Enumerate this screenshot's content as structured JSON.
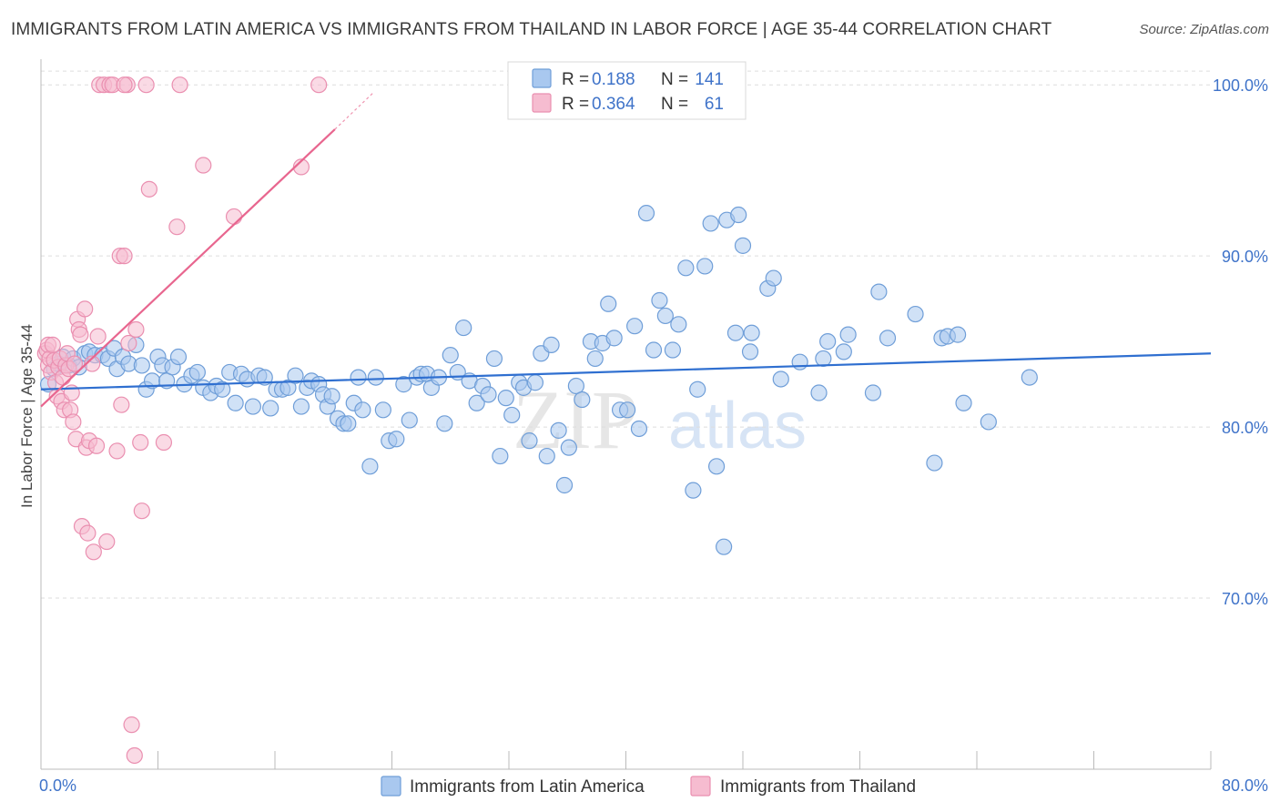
{
  "header": {
    "title": "IMMIGRANTS FROM LATIN AMERICA VS IMMIGRANTS FROM THAILAND IN LABOR FORCE | AGE 35-44 CORRELATION CHART",
    "source": "Source: ZipAtlas.com"
  },
  "watermark": {
    "zip": "ZIP",
    "atlas": "atlas"
  },
  "colors": {
    "latin_fill": "#a9c8ef",
    "latin_stroke": "#6f9ed8",
    "latin_line": "#2f6fd0",
    "thai_fill": "#f6bcd0",
    "thai_stroke": "#ea8fb0",
    "thai_line": "#e8668f",
    "tick_text": "#3f73c9",
    "grid": "#dddddd"
  },
  "legend_top": {
    "rows": [
      {
        "r_label": "R =",
        "r_value": "0.188",
        "n_label": "N =",
        "n_value": "141"
      },
      {
        "r_label": "R =",
        "r_value": "0.364",
        "n_label": "N =",
        "n_value": "61"
      }
    ]
  },
  "legend_bottom": {
    "items": [
      "Immigrants from Latin America",
      "Immigrants from Thailand"
    ]
  },
  "chart_data": {
    "type": "scatter",
    "title": "IMMIGRANTS FROM LATIN AMERICA VS IMMIGRANTS FROM THAILAND IN LABOR FORCE | AGE 35-44 CORRELATION CHART",
    "xlabel": "",
    "ylabel": "In Labor Force | Age 35-44",
    "xlim": [
      0,
      80
    ],
    "ylim": [
      60,
      101.5
    ],
    "x_tick_labels": [
      "0.0%",
      "80.0%"
    ],
    "y_ticks": [
      70,
      80,
      90,
      100
    ],
    "y_tick_labels": [
      "70.0%",
      "80.0%",
      "90.0%",
      "100.0%"
    ],
    "grid": true,
    "legend_position": "top-center",
    "series": [
      {
        "name": "Immigrants from Latin America",
        "r": 0.188,
        "n": 141,
        "trend": {
          "x": [
            0,
            80
          ],
          "y": [
            82.2,
            84.3
          ]
        },
        "points": [
          [
            0.5,
            82.5
          ],
          [
            0.9,
            83.4
          ],
          [
            1.2,
            83.7
          ],
          [
            1.5,
            84.1
          ],
          [
            1.9,
            83.6
          ],
          [
            2.2,
            84.0
          ],
          [
            2.6,
            83.5
          ],
          [
            3.0,
            84.3
          ],
          [
            3.3,
            84.4
          ],
          [
            3.7,
            84.2
          ],
          [
            4.2,
            84.2
          ],
          [
            4.6,
            84.0
          ],
          [
            5.0,
            84.6
          ],
          [
            5.2,
            83.4
          ],
          [
            5.6,
            84.1
          ],
          [
            6.0,
            83.7
          ],
          [
            6.5,
            84.8
          ],
          [
            6.9,
            83.6
          ],
          [
            7.2,
            82.2
          ],
          [
            7.6,
            82.7
          ],
          [
            8.0,
            84.1
          ],
          [
            8.3,
            83.6
          ],
          [
            8.6,
            82.7
          ],
          [
            9.0,
            83.5
          ],
          [
            9.4,
            84.1
          ],
          [
            9.8,
            82.5
          ],
          [
            10.3,
            83.0
          ],
          [
            10.7,
            83.2
          ],
          [
            11.1,
            82.3
          ],
          [
            11.6,
            82.0
          ],
          [
            12.0,
            82.4
          ],
          [
            12.4,
            82.2
          ],
          [
            12.9,
            83.2
          ],
          [
            13.3,
            81.4
          ],
          [
            13.7,
            83.1
          ],
          [
            14.1,
            82.8
          ],
          [
            14.5,
            81.2
          ],
          [
            14.9,
            83.0
          ],
          [
            15.3,
            82.9
          ],
          [
            15.7,
            81.1
          ],
          [
            16.1,
            82.2
          ],
          [
            16.5,
            82.2
          ],
          [
            16.9,
            82.3
          ],
          [
            17.4,
            83.0
          ],
          [
            17.8,
            81.2
          ],
          [
            18.2,
            82.3
          ],
          [
            18.5,
            82.7
          ],
          [
            19.0,
            82.5
          ],
          [
            19.3,
            81.9
          ],
          [
            19.6,
            81.2
          ],
          [
            19.9,
            81.8
          ],
          [
            20.3,
            80.5
          ],
          [
            20.7,
            80.2
          ],
          [
            21.0,
            80.2
          ],
          [
            21.4,
            81.4
          ],
          [
            21.7,
            82.9
          ],
          [
            22.0,
            81.0
          ],
          [
            22.5,
            77.7
          ],
          [
            22.9,
            82.9
          ],
          [
            23.4,
            81.0
          ],
          [
            23.8,
            79.2
          ],
          [
            24.3,
            79.3
          ],
          [
            24.8,
            82.5
          ],
          [
            25.2,
            80.4
          ],
          [
            25.7,
            82.9
          ],
          [
            26.0,
            83.1
          ],
          [
            26.4,
            83.1
          ],
          [
            26.7,
            82.3
          ],
          [
            27.2,
            82.9
          ],
          [
            27.6,
            80.2
          ],
          [
            28.0,
            84.2
          ],
          [
            28.5,
            83.2
          ],
          [
            28.9,
            85.8
          ],
          [
            29.3,
            82.7
          ],
          [
            29.8,
            81.4
          ],
          [
            30.2,
            82.4
          ],
          [
            30.6,
            81.9
          ],
          [
            31.0,
            84.0
          ],
          [
            31.4,
            78.3
          ],
          [
            31.8,
            81.7
          ],
          [
            32.2,
            80.7
          ],
          [
            32.7,
            82.6
          ],
          [
            33.0,
            82.3
          ],
          [
            33.4,
            79.2
          ],
          [
            33.8,
            82.6
          ],
          [
            34.2,
            84.3
          ],
          [
            34.6,
            78.3
          ],
          [
            34.9,
            84.8
          ],
          [
            35.4,
            79.8
          ],
          [
            35.8,
            76.6
          ],
          [
            36.1,
            78.8
          ],
          [
            36.6,
            82.4
          ],
          [
            37.0,
            81.6
          ],
          [
            37.6,
            85.0
          ],
          [
            37.9,
            84.0
          ],
          [
            38.4,
            84.9
          ],
          [
            38.8,
            87.2
          ],
          [
            39.2,
            85.2
          ],
          [
            39.6,
            81.0
          ],
          [
            40.1,
            81.0
          ],
          [
            40.6,
            85.9
          ],
          [
            40.9,
            79.9
          ],
          [
            41.4,
            92.5
          ],
          [
            41.9,
            84.5
          ],
          [
            42.3,
            87.4
          ],
          [
            42.7,
            86.5
          ],
          [
            43.2,
            84.5
          ],
          [
            43.6,
            86.0
          ],
          [
            44.1,
            89.3
          ],
          [
            44.6,
            76.3
          ],
          [
            44.9,
            82.2
          ],
          [
            45.4,
            89.4
          ],
          [
            45.8,
            91.9
          ],
          [
            46.2,
            77.7
          ],
          [
            46.7,
            73.0
          ],
          [
            46.9,
            92.1
          ],
          [
            47.5,
            85.5
          ],
          [
            47.7,
            92.4
          ],
          [
            48.0,
            90.6
          ],
          [
            48.5,
            84.4
          ],
          [
            48.6,
            85.5
          ],
          [
            49.7,
            88.1
          ],
          [
            50.1,
            88.7
          ],
          [
            50.6,
            82.8
          ],
          [
            51.9,
            83.8
          ],
          [
            53.2,
            82.0
          ],
          [
            53.5,
            84.0
          ],
          [
            53.8,
            85.0
          ],
          [
            54.9,
            84.4
          ],
          [
            55.2,
            85.4
          ],
          [
            56.9,
            82.0
          ],
          [
            57.3,
            87.9
          ],
          [
            57.9,
            85.2
          ],
          [
            59.8,
            86.6
          ],
          [
            61.1,
            77.9
          ],
          [
            61.6,
            85.2
          ],
          [
            62.0,
            85.3
          ],
          [
            62.7,
            85.4
          ],
          [
            63.1,
            81.4
          ],
          [
            64.8,
            80.3
          ],
          [
            67.6,
            82.9
          ]
        ]
      },
      {
        "name": "Immigrants from Thailand",
        "r": 0.364,
        "n": 61,
        "trend": {
          "x": [
            0,
            20.1
          ],
          "y": [
            81.2,
            97.4
          ]
        },
        "trend_dashed": {
          "x": [
            20.1,
            22.8
          ],
          "y": [
            97.4,
            99.6
          ]
        },
        "points": [
          [
            0.3,
            84.3
          ],
          [
            0.4,
            84.5
          ],
          [
            0.5,
            84.8
          ],
          [
            0.5,
            83.6
          ],
          [
            0.6,
            84.0
          ],
          [
            0.7,
            83.2
          ],
          [
            0.8,
            84.8
          ],
          [
            0.9,
            83.9
          ],
          [
            1.0,
            82.6
          ],
          [
            1.1,
            81.8
          ],
          [
            1.2,
            83.5
          ],
          [
            1.3,
            84.0
          ],
          [
            1.4,
            81.5
          ],
          [
            1.5,
            82.9
          ],
          [
            1.6,
            81.0
          ],
          [
            1.7,
            83.6
          ],
          [
            1.8,
            84.3
          ],
          [
            1.9,
            83.4
          ],
          [
            2.0,
            81.0
          ],
          [
            2.1,
            82.0
          ],
          [
            2.2,
            80.3
          ],
          [
            2.3,
            83.7
          ],
          [
            2.4,
            79.3
          ],
          [
            2.5,
            86.3
          ],
          [
            2.6,
            85.7
          ],
          [
            2.7,
            85.4
          ],
          [
            2.8,
            74.2
          ],
          [
            3.0,
            86.9
          ],
          [
            3.1,
            78.8
          ],
          [
            3.2,
            73.8
          ],
          [
            3.3,
            79.2
          ],
          [
            3.5,
            83.7
          ],
          [
            3.6,
            72.7
          ],
          [
            3.8,
            78.9
          ],
          [
            3.9,
            85.3
          ],
          [
            4.0,
            100.0
          ],
          [
            4.3,
            100.0
          ],
          [
            4.5,
            73.3
          ],
          [
            4.7,
            100.0
          ],
          [
            4.9,
            100.0
          ],
          [
            5.2,
            78.6
          ],
          [
            5.4,
            90.0
          ],
          [
            5.5,
            81.3
          ],
          [
            5.7,
            90.0
          ],
          [
            5.9,
            100.0
          ],
          [
            6.0,
            84.9
          ],
          [
            6.2,
            62.6
          ],
          [
            6.4,
            60.8
          ],
          [
            6.5,
            85.7
          ],
          [
            6.8,
            79.1
          ],
          [
            6.9,
            75.1
          ],
          [
            7.2,
            100.0
          ],
          [
            7.4,
            93.9
          ],
          [
            8.4,
            79.1
          ],
          [
            9.3,
            91.7
          ],
          [
            9.5,
            100.0
          ],
          [
            11.1,
            95.3
          ],
          [
            13.2,
            92.3
          ],
          [
            17.8,
            95.2
          ],
          [
            19.0,
            100.0
          ],
          [
            5.7,
            100.0
          ]
        ]
      }
    ]
  }
}
